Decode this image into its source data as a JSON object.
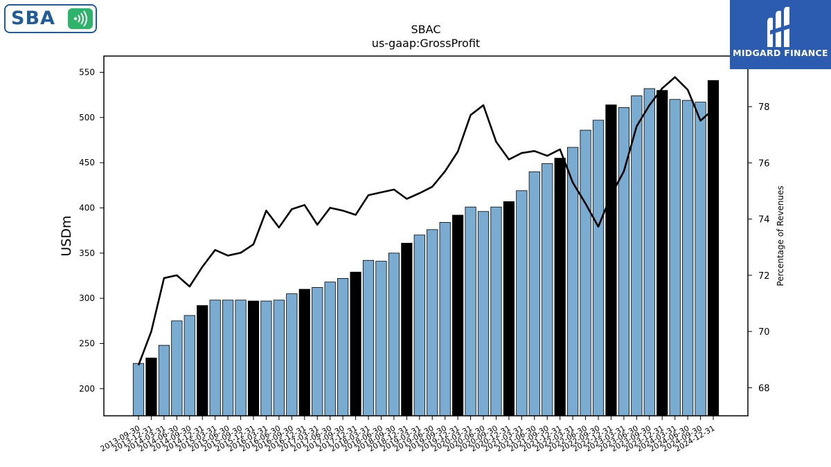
{
  "logos": {
    "left_brand": "SBA",
    "right_brand": "MIDGARD FINANCE"
  },
  "chart_data": {
    "type": "bar",
    "title": "SBAC",
    "subtitle": "us-gaap:GrossProfit",
    "ylabel": "USDm",
    "y2label": "Percentage of Revenues",
    "ylim": [
      170,
      568
    ],
    "y2lim": [
      67,
      79.8
    ],
    "yticks": [
      200,
      250,
      300,
      350,
      400,
      450,
      500,
      550
    ],
    "y2ticks": [
      68,
      70,
      72,
      74,
      76,
      78
    ],
    "categories": [
      "2013-09-30",
      "2013-12-31",
      "2014-03-31",
      "2014-06-30",
      "2014-09-30",
      "2014-12-31",
      "2015-03-31",
      "2015-06-30",
      "2015-09-30",
      "2015-12-31",
      "2016-03-31",
      "2016-06-30",
      "2016-09-30",
      "2016-12-31",
      "2017-03-31",
      "2017-06-30",
      "2017-09-30",
      "2017-12-31",
      "2018-03-31",
      "2018-06-30",
      "2018-09-30",
      "2018-12-31",
      "2019-03-31",
      "2019-06-30",
      "2019-09-30",
      "2019-12-31",
      "2020-03-31",
      "2020-06-30",
      "2020-09-30",
      "2020-12-31",
      "2021-03-31",
      "2021-06-30",
      "2021-09-30",
      "2021-12-31",
      "2022-03-31",
      "2022-06-30",
      "2022-09-30",
      "2022-12-31",
      "2023-03-31",
      "2023-06-30",
      "2023-09-30",
      "2023-12-31",
      "2024-03-31",
      "2024-06-30",
      "2024-09-30",
      "2024-12-31"
    ],
    "xtick_labels": [
      "2013-09-30",
      "2013-12-31",
      "2014-03-31",
      "2014-06-30",
      "2014-09-30",
      "2014-12-31",
      "2015-03-31",
      "2015-06-30",
      "2015-09-30",
      "2015-12-31",
      "2016-03-31",
      "2016-06-30",
      "2016-09-30",
      "2016-12-31",
      "2017-03-31",
      "2017-06-30",
      "2017-09-30",
      "2017-12-31",
      "2018-03-31",
      "2018-06-30",
      "2018-09-30",
      "2018-12-31",
      "2019-03-31",
      "2019-06-30",
      "2019-09-30",
      "2019-12-31",
      "2020-03-31",
      "2020-06-30",
      "2020-09-30",
      "2020-12-31",
      "2021-03-31",
      "2021-06-30",
      "2021-09-30",
      "2021-12-31",
      "2022-03-31",
      "2022-06-30",
      "2022-09-30",
      "2022-12-31",
      "2023-03-31",
      "2023-06-30",
      "2023-09-30",
      "2023-12-31",
      "2024-03-31",
      "2024-06-30",
      "2024-09-30",
      "2024-12-31"
    ],
    "series": [
      {
        "type": "bar",
        "values": [
          228,
          234,
          248,
          275,
          281,
          292,
          298,
          298,
          298,
          297,
          297,
          298,
          305,
          310,
          312,
          318,
          322,
          329,
          342,
          341,
          350,
          361,
          370,
          376,
          384,
          392,
          401,
          396,
          401,
          407,
          419,
          440,
          449,
          455,
          467,
          486,
          497,
          514,
          511,
          524,
          532,
          530,
          520,
          519,
          517,
          541
        ]
      },
      {
        "type": "line",
        "values": [
          68.8,
          70.0,
          71.9,
          72.0,
          71.6,
          72.3,
          72.9,
          72.7,
          72.8,
          73.1,
          74.3,
          73.7,
          74.35,
          74.5,
          73.8,
          74.4,
          74.3,
          74.15,
          74.85,
          74.95,
          75.05,
          74.72,
          74.92,
          75.15,
          75.7,
          76.4,
          77.7,
          78.05,
          76.75,
          76.12,
          76.35,
          76.42,
          76.25,
          76.48,
          75.3,
          74.55,
          73.73,
          74.85,
          75.7,
          77.3,
          78.05,
          78.65,
          79.05,
          78.6,
          77.5,
          77.9
        ]
      }
    ],
    "bar_colors": {
      "default": "#7aabd1",
      "year_end": "#000000"
    },
    "year_end_indices": [
      1,
      5,
      9,
      13,
      17,
      21,
      25,
      29,
      33,
      37,
      41,
      45
    ],
    "grid": false
  }
}
